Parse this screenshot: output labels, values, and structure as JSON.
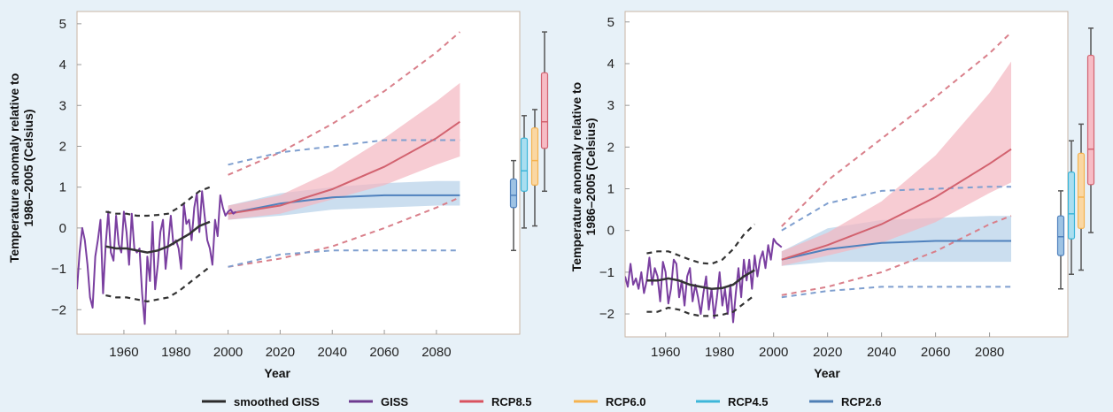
{
  "chart_data": [
    {
      "type": "line",
      "panel": "left",
      "xlabel": "Year",
      "ylabel_lines": [
        "Temperature anomaly relative to",
        "1986–2005 (Celsius)"
      ],
      "xlim": [
        1942,
        2112
      ],
      "ylim": [
        -2.6,
        5.3
      ],
      "x_ticks": [
        1960,
        1980,
        2000,
        2020,
        2040,
        2060,
        2080
      ],
      "y_ticks": [
        -2,
        -1,
        0,
        1,
        2,
        3,
        4,
        5
      ],
      "y_tick_labels": [
        "−2",
        "−1",
        "0",
        "1",
        "2",
        "3",
        "4",
        "5"
      ],
      "plot_x_end": 2089,
      "giss": {
        "x": [
          1942,
          1943,
          1944,
          1945,
          1946,
          1947,
          1948,
          1949,
          1950,
          1951,
          1952,
          1953,
          1954,
          1955,
          1956,
          1957,
          1958,
          1959,
          1960,
          1961,
          1962,
          1963,
          1964,
          1965,
          1966,
          1967,
          1968,
          1969,
          1970,
          1971,
          1972,
          1973,
          1974,
          1975,
          1976,
          1977,
          1978,
          1979,
          1980,
          1981,
          1982,
          1983,
          1984,
          1985,
          1986,
          1987,
          1988,
          1989,
          1990,
          1991,
          1992,
          1993,
          1994,
          1995,
          1996,
          1997,
          1998,
          1999,
          2000,
          2001,
          2002,
          2003
        ],
        "y": [
          -1.5,
          -0.6,
          0.0,
          -0.3,
          -0.9,
          -1.7,
          -1.95,
          -0.7,
          -0.3,
          0.2,
          -1.6,
          -0.4,
          0.4,
          -0.6,
          -0.8,
          0.3,
          -0.4,
          -0.6,
          0.4,
          -0.1,
          -0.9,
          0.35,
          -0.5,
          -0.6,
          -0.5,
          -1.6,
          -2.35,
          -0.7,
          -1.3,
          0.15,
          -1.5,
          -0.9,
          -0.1,
          0.2,
          -1.0,
          -0.4,
          0.3,
          -0.4,
          -0.3,
          -0.5,
          -1.0,
          0.6,
          0.1,
          0.2,
          -0.3,
          0.5,
          0.85,
          -0.1,
          0.9,
          0.3,
          -0.3,
          -0.5,
          -0.9,
          0.2,
          -0.2,
          0.8,
          0.5,
          0.3,
          0.4,
          0.45,
          0.35,
          0.4
        ]
      },
      "smoothed": {
        "x": [
          1953,
          1957,
          1961,
          1965,
          1969,
          1973,
          1977,
          1981,
          1985,
          1989,
          1993
        ],
        "y": [
          -0.45,
          -0.5,
          -0.5,
          -0.55,
          -0.6,
          -0.55,
          -0.45,
          -0.3,
          -0.15,
          0.05,
          0.15
        ]
      },
      "smoothed_env_upper": {
        "x": [
          1953,
          1957,
          1961,
          1965,
          1969,
          1973,
          1977,
          1981,
          1985,
          1989,
          1993
        ],
        "y": [
          0.4,
          0.35,
          0.35,
          0.3,
          0.3,
          0.32,
          0.35,
          0.5,
          0.7,
          0.9,
          1.0
        ]
      },
      "smoothed_env_lower": {
        "x": [
          1953,
          1957,
          1961,
          1965,
          1969,
          1973,
          1977,
          1981,
          1985,
          1989,
          1993
        ],
        "y": [
          -1.65,
          -1.7,
          -1.7,
          -1.75,
          -1.8,
          -1.75,
          -1.7,
          -1.55,
          -1.35,
          -1.15,
          -0.95
        ]
      },
      "rcp85": {
        "x": [
          2000,
          2020,
          2040,
          2060,
          2080,
          2089
        ],
        "y": [
          0.35,
          0.55,
          0.95,
          1.5,
          2.2,
          2.6
        ],
        "upper": [
          0.55,
          0.8,
          1.4,
          2.2,
          3.1,
          3.55
        ],
        "lower": [
          0.2,
          0.35,
          0.7,
          1.05,
          1.55,
          1.75
        ],
        "dash_upper": [
          1.3,
          1.85,
          2.55,
          3.35,
          4.3,
          4.8
        ],
        "dash_lower": [
          -0.95,
          -0.75,
          -0.45,
          0.0,
          0.5,
          0.75
        ]
      },
      "rcp26": {
        "x": [
          2000,
          2020,
          2040,
          2060,
          2080,
          2089
        ],
        "y": [
          0.35,
          0.6,
          0.75,
          0.8,
          0.8,
          0.8
        ],
        "upper": [
          0.55,
          0.85,
          1.0,
          1.1,
          1.15,
          1.15
        ],
        "lower": [
          0.2,
          0.3,
          0.45,
          0.5,
          0.55,
          0.55
        ],
        "dash_upper": [
          1.55,
          1.85,
          2.0,
          2.15,
          2.15,
          2.15
        ],
        "dash_lower": [
          -0.95,
          -0.65,
          -0.55,
          -0.55,
          -0.55,
          -0.55
        ]
      },
      "boxplots": [
        {
          "name": "RCP2.6",
          "min": -0.55,
          "q1": 0.5,
          "median": 0.8,
          "q3": 1.2,
          "max": 1.65
        },
        {
          "name": "RCP4.5",
          "min": 0.0,
          "q1": 0.9,
          "median": 1.4,
          "q3": 2.2,
          "max": 2.75
        },
        {
          "name": "RCP6.0",
          "min": 0.05,
          "q1": 1.05,
          "median": 1.65,
          "q3": 2.45,
          "max": 2.9
        },
        {
          "name": "RCP8.5",
          "min": 0.9,
          "q1": 1.95,
          "median": 2.6,
          "q3": 3.8,
          "max": 4.8
        }
      ]
    },
    {
      "type": "line",
      "panel": "right",
      "xlabel": "Year",
      "ylabel_lines": [
        "Temperature anomaly relative to",
        "1986–2005 (Celsius)"
      ],
      "xlim": [
        1945,
        2109
      ],
      "ylim": [
        -2.55,
        5.25
      ],
      "x_ticks": [
        1960,
        1980,
        2000,
        2020,
        2040,
        2060,
        2080
      ],
      "y_ticks": [
        -2,
        -1,
        0,
        1,
        2,
        3,
        4,
        5
      ],
      "y_tick_labels": [
        "−2",
        "−1",
        "0",
        "1",
        "2",
        "3",
        "4",
        "5"
      ],
      "plot_x_end": 2088,
      "giss": {
        "x": [
          1945,
          1946,
          1947,
          1948,
          1949,
          1950,
          1951,
          1952,
          1953,
          1954,
          1955,
          1956,
          1957,
          1958,
          1959,
          1960,
          1961,
          1962,
          1963,
          1964,
          1965,
          1966,
          1967,
          1968,
          1969,
          1970,
          1971,
          1972,
          1973,
          1974,
          1975,
          1976,
          1977,
          1978,
          1979,
          1980,
          1981,
          1982,
          1983,
          1984,
          1985,
          1986,
          1987,
          1988,
          1989,
          1990,
          1991,
          1992,
          1993,
          1994,
          1995,
          1996,
          1997,
          1998,
          1999,
          2000,
          2001,
          2002,
          2003
        ],
        "y": [
          -1.1,
          -1.35,
          -0.8,
          -1.3,
          -1.15,
          -1.4,
          -1.0,
          -1.5,
          -1.2,
          -0.65,
          -1.3,
          -0.9,
          -1.1,
          -1.7,
          -0.75,
          -1.0,
          -1.75,
          -1.4,
          -0.7,
          -0.8,
          -1.6,
          -1.2,
          -1.8,
          -1.1,
          -0.9,
          -1.7,
          -1.3,
          -1.6,
          -2.0,
          -1.5,
          -1.1,
          -1.9,
          -1.4,
          -2.1,
          -1.6,
          -1.0,
          -1.8,
          -1.4,
          -2.0,
          -1.3,
          -2.2,
          -1.5,
          -0.9,
          -1.6,
          -0.7,
          -1.2,
          -0.7,
          -1.4,
          -0.6,
          -1.1,
          -0.7,
          -0.5,
          -0.9,
          -0.35,
          -0.7,
          -0.2,
          -0.3,
          -0.35,
          -0.4
        ]
      },
      "smoothed": {
        "x": [
          1953,
          1957,
          1961,
          1965,
          1969,
          1973,
          1977,
          1981,
          1985,
          1989,
          1993
        ],
        "y": [
          -1.2,
          -1.2,
          -1.15,
          -1.2,
          -1.3,
          -1.35,
          -1.4,
          -1.38,
          -1.3,
          -1.1,
          -0.95
        ]
      },
      "smoothed_env_upper": {
        "x": [
          1953,
          1957,
          1961,
          1965,
          1969,
          1973,
          1977,
          1981,
          1985,
          1989,
          1993
        ],
        "y": [
          -0.55,
          -0.5,
          -0.5,
          -0.6,
          -0.7,
          -0.78,
          -0.8,
          -0.7,
          -0.45,
          -0.1,
          0.15
        ]
      },
      "smoothed_env_lower": {
        "x": [
          1953,
          1957,
          1961,
          1965,
          1969,
          1973,
          1977,
          1981,
          1985,
          1989,
          1993
        ],
        "y": [
          -1.95,
          -1.95,
          -1.85,
          -1.9,
          -2.0,
          -2.05,
          -2.05,
          -2.02,
          -1.95,
          -1.75,
          -1.55
        ]
      },
      "rcp85": {
        "x": [
          2003,
          2020,
          2040,
          2060,
          2080,
          2088
        ],
        "y": [
          -0.7,
          -0.35,
          0.15,
          0.8,
          1.6,
          1.95
        ],
        "upper": [
          -0.5,
          -0.05,
          0.7,
          1.8,
          3.3,
          4.05
        ],
        "lower": [
          -0.85,
          -0.6,
          -0.3,
          0.2,
          0.9,
          1.15
        ],
        "dash_upper": [
          0.1,
          1.2,
          2.2,
          3.2,
          4.25,
          4.75
        ],
        "dash_lower": [
          -1.55,
          -1.35,
          -1.0,
          -0.5,
          0.15,
          0.35
        ]
      },
      "rcp26": {
        "x": [
          2003,
          2020,
          2040,
          2060,
          2080,
          2088
        ],
        "y": [
          -0.7,
          -0.45,
          -0.3,
          -0.25,
          -0.25,
          -0.25
        ],
        "upper": [
          -0.5,
          0.05,
          0.25,
          0.3,
          0.35,
          0.35
        ],
        "lower": [
          -0.85,
          -0.75,
          -0.75,
          -0.75,
          -0.75,
          -0.75
        ],
        "dash_upper": [
          0.0,
          0.65,
          0.95,
          1.0,
          1.05,
          1.05
        ],
        "dash_lower": [
          -1.6,
          -1.45,
          -1.35,
          -1.35,
          -1.35,
          -1.35
        ]
      },
      "boxplots": [
        {
          "name": "RCP2.6",
          "min": -1.4,
          "q1": -0.6,
          "median": -0.15,
          "q3": 0.35,
          "max": 0.95
        },
        {
          "name": "RCP4.5",
          "min": -1.05,
          "q1": -0.2,
          "median": 0.4,
          "q3": 1.4,
          "max": 2.15
        },
        {
          "name": "RCP6.0",
          "min": -0.95,
          "q1": 0.05,
          "median": 0.8,
          "q3": 1.85,
          "max": 2.55
        },
        {
          "name": "RCP8.5",
          "min": -0.05,
          "q1": 1.1,
          "median": 1.95,
          "q3": 4.2,
          "max": 4.85
        }
      ]
    }
  ],
  "legend": {
    "items": [
      {
        "label": "smoothed GISS",
        "color": "#2b2b2b",
        "kind": "line"
      },
      {
        "label": "GISS",
        "color": "#6e3a8f",
        "kind": "line"
      },
      {
        "label": "RCP8.5",
        "color": "#d9525f",
        "kind": "line"
      },
      {
        "label": "RCP6.0",
        "color": "#f5b34f",
        "kind": "line"
      },
      {
        "label": "RCP4.5",
        "color": "#3db6d9",
        "kind": "line"
      },
      {
        "label": "RCP2.6",
        "color": "#4f7fb5",
        "kind": "line"
      }
    ]
  },
  "colors": {
    "smoothed": "#333333",
    "giss": "#7a3fa0",
    "rcp85_line": "#d2626f",
    "rcp85_band": "#f3b7c0",
    "rcp85_dash": "#d97f8a",
    "rcp26_line": "#4f81bd",
    "rcp26_band": "#b9d3ea",
    "rcp26_dash": "#7f9fcf",
    "box_rcp26": "#9ec3e4",
    "box_rcp45": "#a9def0",
    "box_rcp60": "#fad7a3",
    "box_rcp85": "#f7bcc5",
    "whisker": "#555555"
  }
}
